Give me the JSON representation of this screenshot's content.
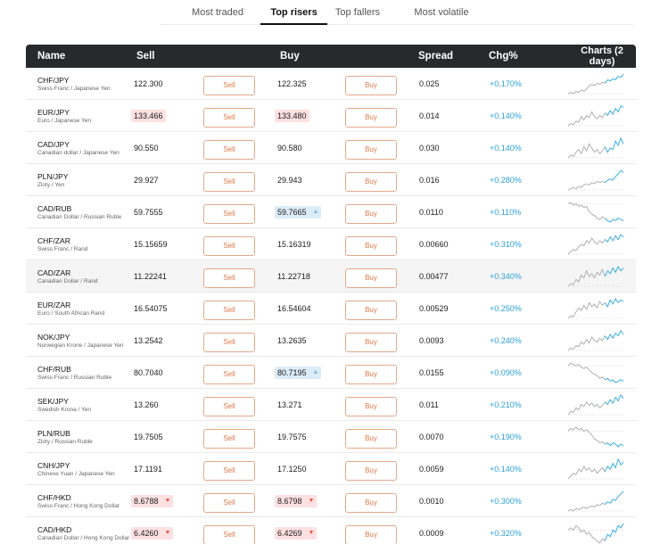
{
  "tabs": [
    {
      "label": "Most traded",
      "active": false
    },
    {
      "label": "Top risers",
      "active": true
    },
    {
      "label": "Top fallers",
      "active": false
    },
    {
      "label": "Most volatile",
      "active": false
    }
  ],
  "columns": {
    "name": "Name",
    "sell": "Sell",
    "buy": "Buy",
    "spread": "Spread",
    "chg": "Chg%",
    "charts_line1": "Charts (2",
    "charts_line2": "days)"
  },
  "buttons": {
    "sell": "Sell",
    "buy": "Buy"
  },
  "colors": {
    "header_bg": "#27292d",
    "button_orange": "#e07a48",
    "change_blue": "#2aa0d8",
    "price_down_bg": "#fde0e0",
    "price_up_bg": "#dcecf7",
    "spark_grey": "#a8a8a8",
    "spark_blue": "#3aaee0"
  },
  "rows": [
    {
      "symbol": "CHF/JPY",
      "desc": "Swiss Franc / Japanese Yen",
      "sell": "122.300",
      "buy": "122.325",
      "spread": "0.025",
      "chg": "+0.170%",
      "sell_hl": "",
      "buy_hl": "",
      "sell_arrow": "",
      "buy_arrow": "",
      "trend": [
        5,
        6,
        5,
        7,
        6,
        8,
        7,
        9,
        12,
        13,
        12,
        14,
        13,
        15,
        14,
        17,
        16,
        18,
        17,
        20,
        19,
        22
      ]
    },
    {
      "symbol": "EUR/JPY",
      "desc": "Euro / Japanese Yen",
      "sell": "133.466",
      "buy": "133.480",
      "spread": "0.014",
      "chg": "+0.140%",
      "sell_hl": "red",
      "buy_hl": "red",
      "sell_arrow": "",
      "buy_arrow": "",
      "trend": [
        6,
        8,
        7,
        10,
        9,
        14,
        11,
        15,
        13,
        18,
        14,
        12,
        15,
        13,
        17,
        15,
        19,
        16,
        21,
        18,
        23,
        22
      ]
    },
    {
      "symbol": "CAD/JPY",
      "desc": "Canadian dollar / Japanese Yen",
      "sell": "90.550",
      "buy": "90.580",
      "spread": "0.030",
      "chg": "+0.140%",
      "sell_hl": "",
      "buy_hl": "",
      "sell_arrow": "",
      "buy_arrow": "",
      "trend": [
        7,
        9,
        8,
        11,
        13,
        10,
        15,
        12,
        17,
        14,
        11,
        13,
        10,
        12,
        15,
        11,
        14,
        13,
        19,
        16,
        21,
        17
      ]
    },
    {
      "symbol": "PLN/JPY",
      "desc": "Zloty / Yen",
      "sell": "29.927",
      "buy": "29.943",
      "spread": "0.016",
      "chg": "+0.280%",
      "sell_hl": "",
      "buy_hl": "",
      "sell_arrow": "",
      "buy_arrow": "",
      "trend": [
        5,
        6,
        7,
        6,
        8,
        7,
        9,
        10,
        9,
        11,
        10,
        12,
        11,
        12,
        11,
        13,
        14,
        13,
        16,
        18,
        21,
        19
      ]
    },
    {
      "symbol": "CAD/RUB",
      "desc": "Canadian Dollar / Russian Ruble",
      "sell": "59.7555",
      "buy": "59.7665",
      "spread": "0.0110",
      "chg": "+0.110%",
      "sell_hl": "",
      "buy_hl": "blue",
      "sell_arrow": "",
      "buy_arrow": "▲",
      "trend": [
        20,
        21,
        19,
        20,
        18,
        19,
        17,
        18,
        14,
        12,
        11,
        9,
        8,
        10,
        9,
        7,
        6,
        8,
        7,
        9,
        8,
        7
      ]
    },
    {
      "symbol": "CHF/ZAR",
      "desc": "Swiss Franc / Rand",
      "sell": "15.15659",
      "buy": "15.16319",
      "spread": "0.00660",
      "chg": "+0.310%",
      "sell_hl": "",
      "buy_hl": "",
      "sell_arrow": "",
      "buy_arrow": "",
      "trend": [
        6,
        8,
        10,
        9,
        12,
        14,
        13,
        17,
        15,
        19,
        16,
        14,
        17,
        15,
        18,
        16,
        20,
        17,
        21,
        18,
        22,
        20
      ]
    },
    {
      "symbol": "CAD/ZAR",
      "desc": "Canadian Dollar / Rand",
      "sell": "11.22241",
      "buy": "11.22718",
      "spread": "0.00477",
      "chg": "+0.340%",
      "sell_hl": "",
      "buy_hl": "",
      "sell_arrow": "",
      "buy_arrow": "",
      "trend": [
        7,
        9,
        8,
        12,
        10,
        15,
        13,
        18,
        14,
        16,
        13,
        17,
        15,
        19,
        14,
        18,
        16,
        20,
        17,
        21,
        18,
        20
      ]
    },
    {
      "symbol": "EUR/ZAR",
      "desc": "Euro / South African Rand",
      "sell": "16.54075",
      "buy": "16.54604",
      "spread": "0.00529",
      "chg": "+0.250%",
      "sell_hl": "",
      "buy_hl": "",
      "sell_arrow": "",
      "buy_arrow": "",
      "trend": [
        6,
        8,
        7,
        11,
        14,
        12,
        16,
        13,
        18,
        15,
        17,
        14,
        19,
        16,
        18,
        15,
        20,
        17,
        21,
        18,
        20,
        19
      ]
    },
    {
      "symbol": "NOK/JPY",
      "desc": "Norwegian Krone / Japanese Yen",
      "sell": "13.2542",
      "buy": "13.2635",
      "spread": "0.0093",
      "chg": "+0.240%",
      "sell_hl": "",
      "buy_hl": "",
      "sell_arrow": "",
      "buy_arrow": "",
      "trend": [
        5,
        7,
        6,
        9,
        8,
        12,
        10,
        14,
        11,
        16,
        13,
        12,
        15,
        13,
        17,
        14,
        18,
        15,
        19,
        17,
        21,
        18
      ]
    },
    {
      "symbol": "CHF/RUB",
      "desc": "Swiss Franc / Russian Ruble",
      "sell": "80.7040",
      "buy": "80.7195",
      "spread": "0.0155",
      "chg": "+0.090%",
      "sell_hl": "",
      "buy_hl": "blue",
      "sell_arrow": "",
      "buy_arrow": "▲",
      "trend": [
        19,
        21,
        20,
        19,
        20,
        18,
        17,
        18,
        16,
        14,
        13,
        12,
        10,
        11,
        9,
        10,
        8,
        9,
        7,
        8,
        9,
        8
      ]
    },
    {
      "symbol": "SEK/JPY",
      "desc": "Swedish Krona / Yen",
      "sell": "13.260",
      "buy": "13.271",
      "spread": "0.011",
      "chg": "+0.210%",
      "sell_hl": "",
      "buy_hl": "",
      "sell_arrow": "",
      "buy_arrow": "",
      "trend": [
        5,
        8,
        7,
        11,
        9,
        14,
        12,
        16,
        13,
        15,
        12,
        14,
        11,
        13,
        16,
        14,
        18,
        15,
        20,
        17,
        22,
        19
      ]
    },
    {
      "symbol": "PLN/RUB",
      "desc": "Zloty / Russian Ruble",
      "sell": "19.7505",
      "buy": "19.7575",
      "spread": "0.0070",
      "chg": "+0.190%",
      "sell_hl": "",
      "buy_hl": "",
      "sell_arrow": "",
      "buy_arrow": "",
      "trend": [
        18,
        20,
        19,
        21,
        19,
        20,
        18,
        19,
        17,
        15,
        12,
        11,
        9,
        10,
        8,
        9,
        7,
        9,
        8,
        6,
        8,
        7
      ]
    },
    {
      "symbol": "CNH/JPY",
      "desc": "Chinese Yuan / Japanese Yen",
      "sell": "17.1191",
      "buy": "17.1250",
      "spread": "0.0059",
      "chg": "+0.140%",
      "sell_hl": "",
      "buy_hl": "",
      "sell_arrow": "",
      "buy_arrow": "",
      "trend": [
        6,
        8,
        10,
        9,
        13,
        11,
        15,
        12,
        14,
        11,
        13,
        10,
        12,
        14,
        11,
        15,
        13,
        17,
        14,
        20,
        16,
        18
      ]
    },
    {
      "symbol": "CHF/HKD",
      "desc": "Swiss Franc / Hong Kong Dollar",
      "sell": "8.6788",
      "buy": "8.6798",
      "spread": "0.0010",
      "chg": "+0.300%",
      "sell_hl": "red",
      "buy_hl": "red",
      "sell_arrow": "▼",
      "buy_arrow": "▼",
      "trend": [
        5,
        6,
        5,
        7,
        6,
        7,
        8,
        7,
        8,
        9,
        8,
        10,
        9,
        11,
        10,
        12,
        11,
        14,
        13,
        16,
        18,
        20
      ]
    },
    {
      "symbol": "CAD/HKD",
      "desc": "Canadian Dollar / Hong Kong Dollar",
      "sell": "6.4260",
      "buy": "6.4269",
      "spread": "0.0009",
      "chg": "+0.320%",
      "sell_hl": "red",
      "buy_hl": "red",
      "sell_arrow": "▼",
      "buy_arrow": "▼",
      "trend": [
        14,
        15,
        14,
        16,
        15,
        13,
        14,
        12,
        13,
        11,
        10,
        9,
        8,
        10,
        9,
        12,
        11,
        14,
        13,
        16,
        15,
        17
      ]
    }
  ]
}
